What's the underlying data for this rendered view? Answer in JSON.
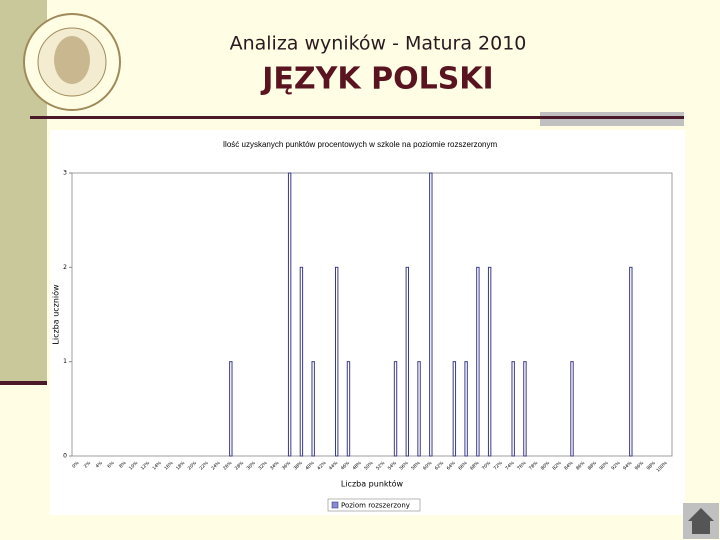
{
  "header": {
    "title": "Analiza wyników  - Matura 2010",
    "subject": "JĘZYK POLSKI"
  },
  "chart_data": {
    "type": "bar",
    "title": "Ilość uzyskanych punktów procentowych w szkole na poziomie rozszerzonym",
    "x_label": "Liczba punktów",
    "y_label": "Liczba uczniów",
    "categories": [
      "0%",
      "2%",
      "4%",
      "6%",
      "8%",
      "10%",
      "12%",
      "14%",
      "16%",
      "18%",
      "20%",
      "22%",
      "24%",
      "26%",
      "28%",
      "30%",
      "32%",
      "34%",
      "36%",
      "38%",
      "40%",
      "42%",
      "44%",
      "46%",
      "48%",
      "50%",
      "52%",
      "54%",
      "56%",
      "58%",
      "60%",
      "62%",
      "64%",
      "66%",
      "68%",
      "70%",
      "72%",
      "74%",
      "76%",
      "78%",
      "80%",
      "82%",
      "84%",
      "86%",
      "88%",
      "90%",
      "92%",
      "94%",
      "96%",
      "98%",
      "100%"
    ],
    "series": [
      {
        "name": "Poziom rozszerzony",
        "color": "#3a3a8c",
        "values": [
          0,
          0,
          0,
          0,
          0,
          0,
          0,
          0,
          0,
          0,
          0,
          0,
          0,
          1,
          0,
          0,
          0,
          0,
          3,
          2,
          1,
          0,
          2,
          1,
          0,
          0,
          0,
          1,
          2,
          1,
          3,
          0,
          1,
          1,
          2,
          2,
          0,
          1,
          1,
          0,
          0,
          0,
          1,
          0,
          0,
          0,
          0,
          2,
          0,
          0,
          0
        ]
      }
    ],
    "ylim": [
      0,
      3
    ],
    "yticks": [
      0,
      1,
      2,
      3
    ],
    "grid": false,
    "legend": "bottom"
  }
}
